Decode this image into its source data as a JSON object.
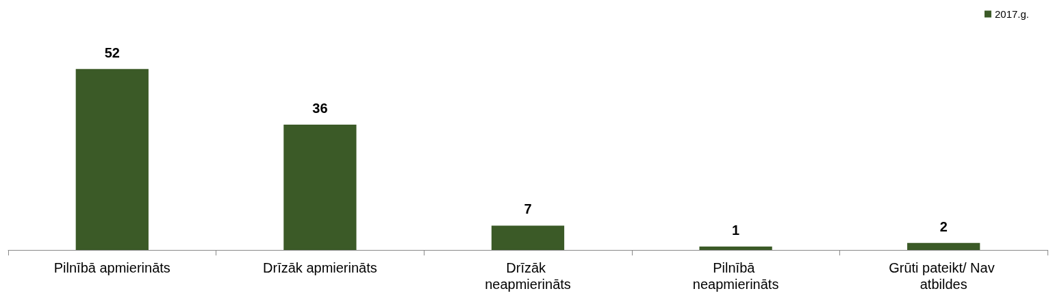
{
  "chart_data": {
    "type": "bar",
    "categories": [
      "Pilnībā apmierināts",
      "Drīzāk apmierināts",
      "Drīzāk neapmierināts",
      "Pilnībā neapmierināts",
      "Grūti pateikt/ Nav atbildes"
    ],
    "series": [
      {
        "name": "2017.g.",
        "color": "#3b5a27",
        "values": [
          52,
          36,
          7,
          1,
          2
        ]
      }
    ],
    "data_labels": true,
    "legend": "top right",
    "grid": false
  }
}
